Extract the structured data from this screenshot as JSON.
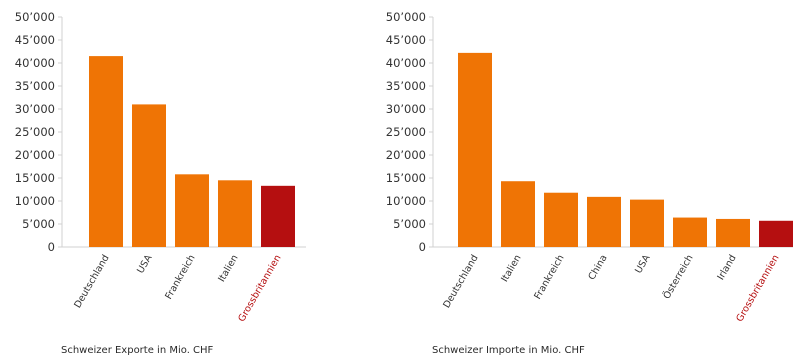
{
  "colors": {
    "bar": "#ef7405",
    "highlight": "#b50f10",
    "axis": "#d0d0d0",
    "text": "#333333"
  },
  "chart_data": [
    {
      "type": "bar",
      "title": "",
      "caption": "Schweizer Exporte in Mio. CHF",
      "xlabel": "",
      "ylabel": "",
      "ylim": [
        0,
        50000
      ],
      "yticks": [
        0,
        5000,
        10000,
        15000,
        20000,
        25000,
        30000,
        35000,
        40000,
        45000,
        50000
      ],
      "ytick_labels": [
        "0",
        "5’000",
        "10’000",
        "15’000",
        "20’000",
        "25’000",
        "30’000",
        "35’000",
        "40’000",
        "45’000",
        "50’000"
      ],
      "grid": false,
      "categories": [
        "Deutschland",
        "USA",
        "Frankreich",
        "Italien",
        "Grossbritannien"
      ],
      "values": [
        41500,
        31000,
        15800,
        14500,
        13300
      ],
      "highlight": [
        false,
        false,
        false,
        false,
        true
      ]
    },
    {
      "type": "bar",
      "title": "",
      "caption": "Schweizer Importe in Mio. CHF",
      "xlabel": "",
      "ylabel": "",
      "ylim": [
        0,
        50000
      ],
      "yticks": [
        0,
        5000,
        10000,
        15000,
        20000,
        25000,
        30000,
        35000,
        40000,
        45000,
        50000
      ],
      "ytick_labels": [
        "0",
        "5’000",
        "10’000",
        "15’000",
        "20’000",
        "25’000",
        "30’000",
        "35’000",
        "40’000",
        "45’000",
        "50’000"
      ],
      "grid": false,
      "categories": [
        "Deutschland",
        "Italien",
        "Frankreich",
        "China",
        "USA",
        "Österreich",
        "Irland",
        "Grossbritannien"
      ],
      "values": [
        42200,
        14300,
        11800,
        10900,
        10300,
        6400,
        6100,
        5700
      ],
      "highlight": [
        false,
        false,
        false,
        false,
        false,
        false,
        false,
        true
      ]
    }
  ]
}
